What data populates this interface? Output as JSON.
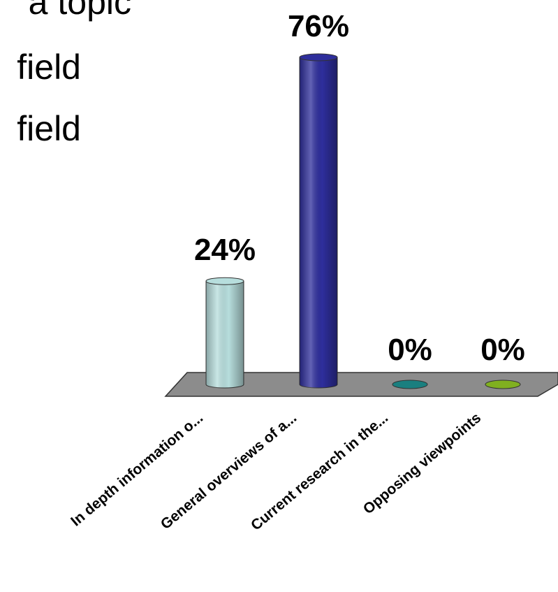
{
  "slide": {
    "text_fragments": [
      "a topic",
      "field",
      "field"
    ]
  },
  "chart_data": {
    "type": "bar",
    "categories": [
      "In depth information o...",
      "General overviews of a...",
      "Current research in the...",
      "Opposing viewpoints"
    ],
    "values": [
      24,
      76,
      0,
      0
    ],
    "data_labels": [
      "24%",
      "76%",
      "0%",
      "0%"
    ],
    "unit": "%",
    "ylim": [
      0,
      100
    ],
    "grid": false,
    "style": "3d-cylinder",
    "colors": [
      "#b7dedd",
      "#2e2e9c",
      "#1a7f7f",
      "#80b020"
    ],
    "floor_color": "#8c8c8c"
  }
}
